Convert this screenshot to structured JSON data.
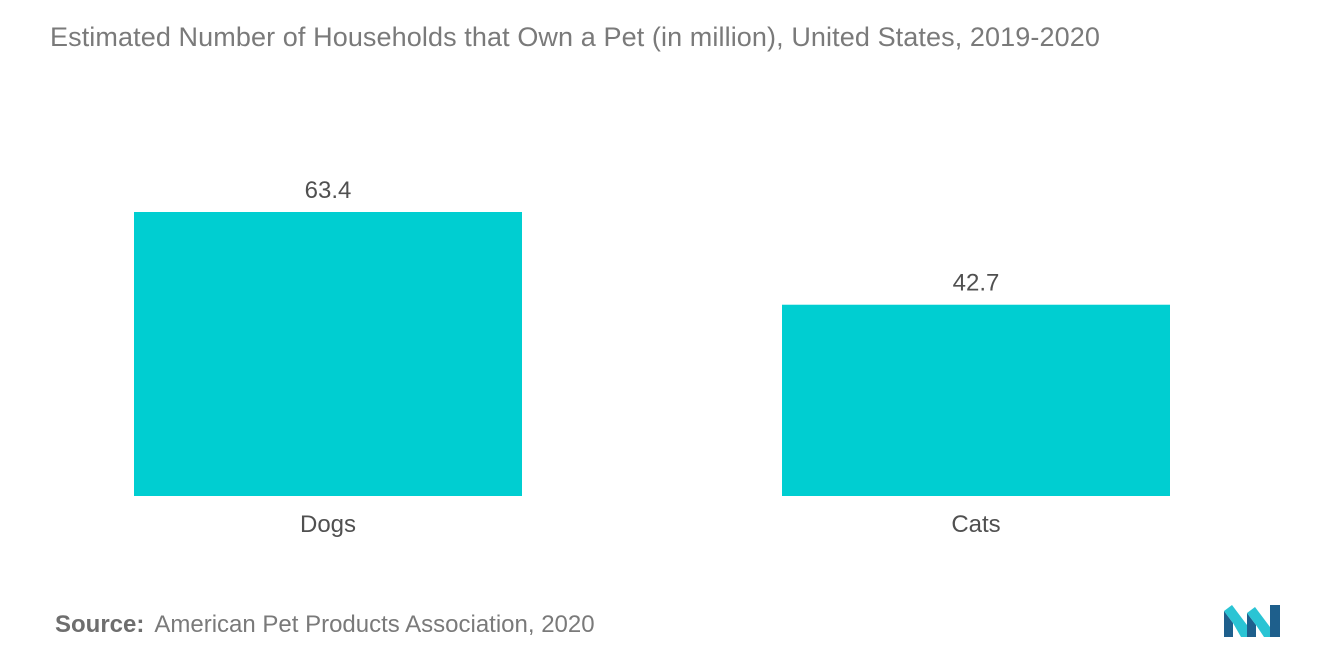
{
  "chart_data": {
    "type": "bar",
    "title": "Estimated Number of Households that Own a Pet (in million), United States, 2019-2020",
    "categories": [
      "Dogs",
      "Cats"
    ],
    "values": [
      63.4,
      42.7
    ],
    "value_labels": [
      "63.4",
      "42.7"
    ],
    "xlabel": "",
    "ylabel": "",
    "ylim": [
      0,
      63.4
    ],
    "grid": false,
    "legend": "none",
    "bar_color": "#00ced1"
  },
  "source": {
    "label": "Source:",
    "text": "American Pet Products Association, 2020"
  },
  "colors": {
    "bar": "#00ced1",
    "text": "#7a7a7a",
    "logo_dark": "#1e5f8c",
    "logo_light": "#2ac4d4"
  },
  "logo": {
    "icon": "mordor-intelligence-logo-icon"
  }
}
